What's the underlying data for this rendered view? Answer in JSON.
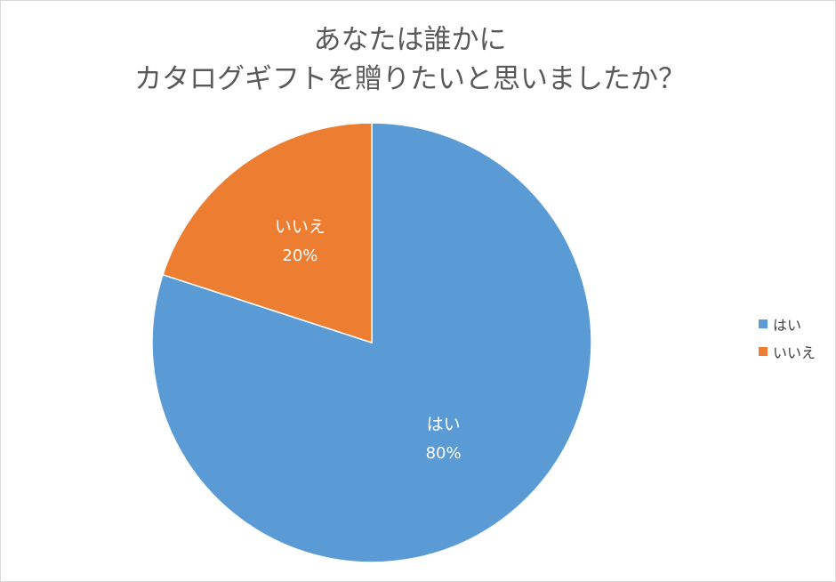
{
  "chart_data": {
    "type": "pie",
    "title": [
      "あなたは誰かに",
      "カタログギフトを贈りたいと思いましたか？"
    ],
    "slices": [
      {
        "name": "はい",
        "value": 80,
        "label": "80%",
        "color": "#5b9bd5"
      },
      {
        "name": "いいえ",
        "value": 20,
        "label": "20%",
        "color": "#ed7d31"
      }
    ],
    "start": "12 o'clock",
    "direction": "clockwise",
    "legend_position": "right"
  }
}
